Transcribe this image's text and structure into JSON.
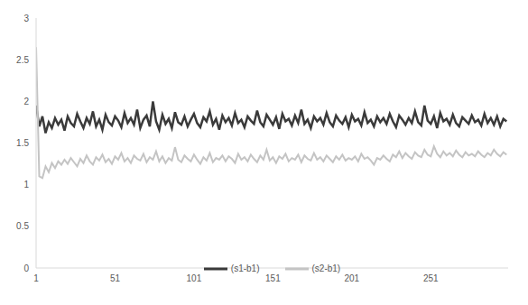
{
  "chart_data": {
    "type": "line",
    "x": [
      1,
      3,
      5,
      7,
      9,
      11,
      13,
      15,
      17,
      19,
      21,
      23,
      25,
      27,
      29,
      31,
      33,
      35,
      37,
      39,
      41,
      43,
      45,
      47,
      49,
      51,
      53,
      55,
      57,
      59,
      61,
      63,
      65,
      67,
      69,
      71,
      73,
      75,
      77,
      79,
      81,
      83,
      85,
      87,
      89,
      91,
      93,
      95,
      97,
      99,
      101,
      103,
      105,
      107,
      109,
      111,
      113,
      115,
      117,
      119,
      121,
      123,
      125,
      127,
      129,
      131,
      133,
      135,
      137,
      139,
      141,
      143,
      145,
      147,
      149,
      151,
      153,
      155,
      157,
      159,
      161,
      163,
      165,
      167,
      169,
      171,
      173,
      175,
      177,
      179,
      181,
      183,
      185,
      187,
      189,
      191,
      193,
      195,
      197,
      199,
      201,
      203,
      205,
      207,
      209,
      211,
      213,
      215,
      217,
      219,
      221,
      223,
      225,
      227,
      229,
      231,
      233,
      235,
      237,
      239,
      241,
      243,
      245,
      247,
      249,
      251,
      253,
      255,
      257,
      259,
      261,
      263,
      265,
      267,
      269,
      271,
      273,
      275,
      277,
      279,
      281,
      283,
      285,
      287,
      289,
      291,
      293,
      295,
      297,
      299
    ],
    "xlim": [
      1,
      300
    ],
    "xticks": [
      1,
      51,
      101,
      151,
      201,
      251
    ],
    "ylim": [
      0,
      3
    ],
    "yticks": [
      0,
      0.5,
      1,
      1.5,
      2,
      2.5,
      3
    ],
    "grid": false,
    "legend": "bottom",
    "series": [
      {
        "name": "(s1-b1)",
        "color": "#3a3a3a",
        "values": [
          1.95,
          1.7,
          1.82,
          1.62,
          1.75,
          1.68,
          1.8,
          1.72,
          1.78,
          1.65,
          1.82,
          1.74,
          1.7,
          1.85,
          1.76,
          1.68,
          1.8,
          1.73,
          1.88,
          1.7,
          1.78,
          1.66,
          1.84,
          1.75,
          1.71,
          1.82,
          1.77,
          1.69,
          1.86,
          1.74,
          1.8,
          1.72,
          1.9,
          1.68,
          1.78,
          1.83,
          1.7,
          2.0,
          1.76,
          1.66,
          1.84,
          1.73,
          1.79,
          1.68,
          1.87,
          1.75,
          1.72,
          1.82,
          1.7,
          1.78,
          1.85,
          1.74,
          1.69,
          1.81,
          1.76,
          1.88,
          1.72,
          1.79,
          1.66,
          1.83,
          1.75,
          1.8,
          1.71,
          1.86,
          1.74,
          1.78,
          1.69,
          1.82,
          1.77,
          1.73,
          1.89,
          1.75,
          1.7,
          1.84,
          1.78,
          1.72,
          1.81,
          1.67,
          1.85,
          1.76,
          1.79,
          1.71,
          1.83,
          1.74,
          1.9,
          1.73,
          1.78,
          1.68,
          1.82,
          1.76,
          1.8,
          1.72,
          1.86,
          1.75,
          1.7,
          1.83,
          1.77,
          1.73,
          1.81,
          1.69,
          1.84,
          1.76,
          1.79,
          1.71,
          1.87,
          1.74,
          1.78,
          1.7,
          1.82,
          1.75,
          1.8,
          1.73,
          1.85,
          1.76,
          1.69,
          1.83,
          1.78,
          1.72,
          1.8,
          1.74,
          1.88,
          1.75,
          1.71,
          1.95,
          1.77,
          1.73,
          1.82,
          1.68,
          1.86,
          1.76,
          1.79,
          1.72,
          1.84,
          1.74,
          1.7,
          1.81,
          1.77,
          1.73,
          1.83,
          1.75,
          1.78,
          1.71,
          1.85,
          1.74,
          1.8,
          1.72,
          1.82,
          1.7,
          1.79,
          1.76
        ]
      },
      {
        "name": "(s2-b1)",
        "color": "#c4c4c4",
        "values": [
          2.65,
          1.1,
          1.08,
          1.22,
          1.15,
          1.26,
          1.2,
          1.28,
          1.24,
          1.3,
          1.25,
          1.32,
          1.27,
          1.22,
          1.31,
          1.26,
          1.35,
          1.28,
          1.24,
          1.33,
          1.29,
          1.36,
          1.27,
          1.31,
          1.25,
          1.34,
          1.3,
          1.38,
          1.28,
          1.32,
          1.26,
          1.35,
          1.31,
          1.29,
          1.37,
          1.27,
          1.33,
          1.3,
          1.4,
          1.28,
          1.34,
          1.26,
          1.32,
          1.29,
          1.45,
          1.3,
          1.27,
          1.35,
          1.31,
          1.28,
          1.36,
          1.3,
          1.25,
          1.33,
          1.29,
          1.38,
          1.27,
          1.32,
          1.3,
          1.35,
          1.28,
          1.34,
          1.31,
          1.26,
          1.37,
          1.3,
          1.33,
          1.28,
          1.36,
          1.31,
          1.27,
          1.35,
          1.3,
          1.42,
          1.29,
          1.33,
          1.26,
          1.34,
          1.31,
          1.37,
          1.28,
          1.32,
          1.3,
          1.36,
          1.27,
          1.35,
          1.31,
          1.29,
          1.38,
          1.3,
          1.33,
          1.28,
          1.35,
          1.31,
          1.27,
          1.34,
          1.3,
          1.36,
          1.29,
          1.32,
          1.3,
          1.34,
          1.28,
          1.37,
          1.31,
          1.33,
          1.29,
          1.24,
          1.32,
          1.3,
          1.35,
          1.31,
          1.28,
          1.36,
          1.33,
          1.4,
          1.32,
          1.38,
          1.34,
          1.31,
          1.39,
          1.35,
          1.33,
          1.42,
          1.36,
          1.34,
          1.46,
          1.37,
          1.33,
          1.4,
          1.35,
          1.38,
          1.34,
          1.41,
          1.36,
          1.33,
          1.39,
          1.35,
          1.37,
          1.34,
          1.4,
          1.36,
          1.33,
          1.38,
          1.35,
          1.42,
          1.37,
          1.34,
          1.39,
          1.36
        ]
      }
    ]
  }
}
